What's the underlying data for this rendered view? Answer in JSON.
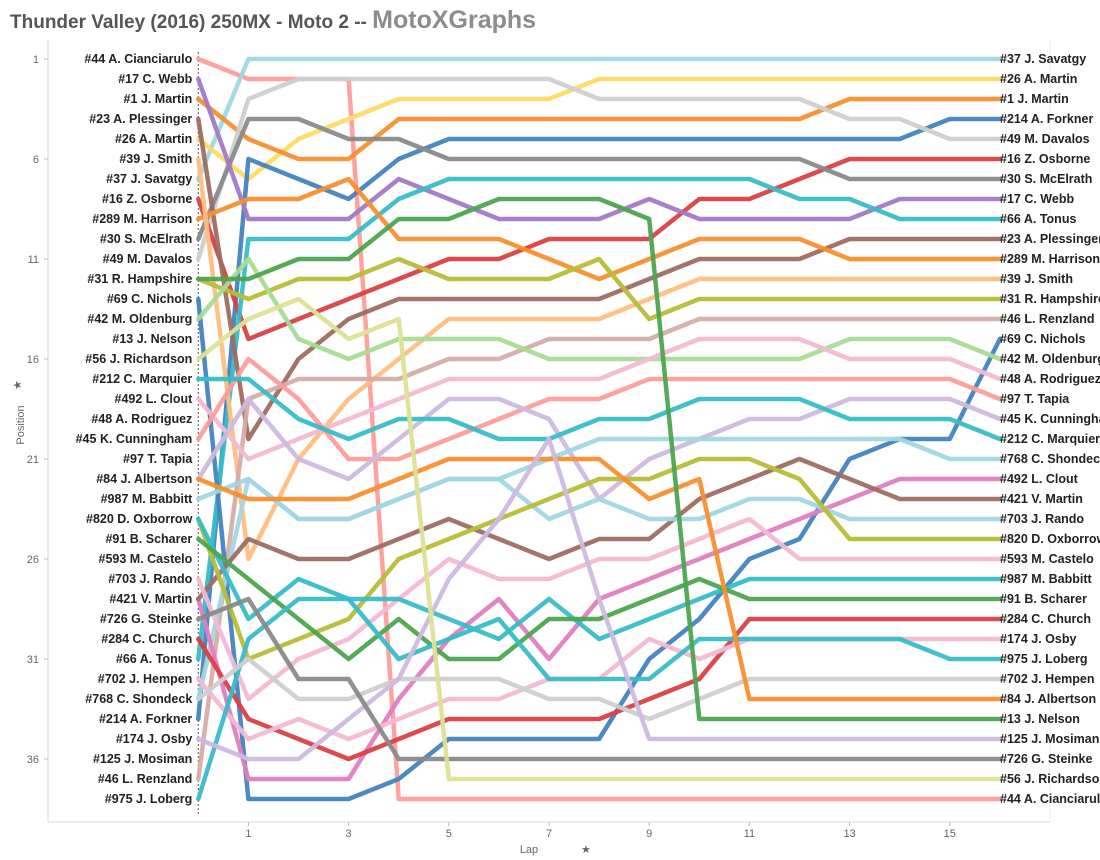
{
  "header": {
    "title": "Thunder Valley (2016) 250MX - Moto 2 --",
    "brand": "MotoXGraphs"
  },
  "colors": {
    "background": "#ffffff",
    "grid": "#ececec",
    "tick_text": "#666666",
    "label_text": "#222222"
  },
  "chart_data": {
    "type": "line",
    "xlabel": "Lap",
    "ylabel": "Position",
    "xlim": [
      -3,
      17
    ],
    "ylim": [
      1,
      38
    ],
    "y_inverted": true,
    "x_ticks": [
      1,
      3,
      5,
      7,
      9,
      11,
      13,
      15
    ],
    "y_ticks": [
      1,
      6,
      11,
      16,
      21,
      26,
      31,
      36
    ],
    "grid": false,
    "x": [
      0,
      1,
      2,
      3,
      4,
      5,
      6,
      7,
      8,
      9,
      10,
      11,
      12,
      13,
      14,
      15,
      16
    ],
    "series": [
      {
        "name": "#44 A. Cianciarulo",
        "color": "#ff9d9a",
        "values": [
          1,
          2,
          2,
          2,
          38,
          38,
          38,
          38,
          38,
          38,
          38,
          38,
          38,
          38,
          38,
          38,
          38
        ]
      },
      {
        "name": "#37 J. Savatgy",
        "color": "#a0d7e3",
        "values": [
          7,
          1,
          1,
          1,
          1,
          1,
          1,
          1,
          1,
          1,
          1,
          1,
          1,
          1,
          1,
          1,
          1
        ]
      },
      {
        "name": "#26 A. Martin",
        "color": "#ffdb62",
        "values": [
          5,
          7,
          5,
          4,
          3,
          3,
          3,
          3,
          2,
          2,
          2,
          2,
          2,
          2,
          2,
          2,
          2
        ]
      },
      {
        "name": "#1 J. Martin",
        "color": "#f88f2d",
        "values": [
          3,
          5,
          6,
          6,
          4,
          4,
          4,
          4,
          4,
          4,
          4,
          4,
          4,
          3,
          3,
          3,
          3
        ]
      },
      {
        "name": "#214 A. Forkner",
        "color": "#4383c0",
        "values": [
          34,
          6,
          7,
          8,
          6,
          5,
          5,
          5,
          5,
          5,
          5,
          5,
          5,
          5,
          5,
          4,
          4
        ]
      },
      {
        "name": "#49 M. Davalos",
        "color": "#cfcfcf",
        "values": [
          11,
          3,
          2,
          2,
          2,
          2,
          2,
          2,
          3,
          3,
          3,
          3,
          3,
          4,
          4,
          5,
          5
        ]
      },
      {
        "name": "#16 Z. Osborne",
        "color": "#da4043",
        "values": [
          8,
          15,
          14,
          13,
          12,
          11,
          11,
          10,
          10,
          10,
          8,
          8,
          7,
          6,
          6,
          6,
          6
        ]
      },
      {
        "name": "#30 S. McElrath",
        "color": "#8a8a8a",
        "values": [
          10,
          4,
          4,
          5,
          5,
          6,
          6,
          6,
          6,
          6,
          6,
          6,
          6,
          7,
          7,
          7,
          7
        ]
      },
      {
        "name": "#17 C. Webb",
        "color": "#a379c6",
        "values": [
          2,
          9,
          9,
          9,
          7,
          8,
          9,
          9,
          9,
          8,
          9,
          9,
          9,
          9,
          8,
          8,
          8
        ]
      },
      {
        "name": "#66 A. Tonus",
        "color": "#37bdc8",
        "values": [
          31,
          10,
          10,
          10,
          8,
          7,
          7,
          7,
          7,
          7,
          7,
          7,
          8,
          8,
          9,
          9,
          9
        ]
      },
      {
        "name": "#23 A. Plessinger",
        "color": "#9f6b62",
        "values": [
          4,
          20,
          16,
          14,
          13,
          13,
          13,
          13,
          13,
          12,
          11,
          11,
          11,
          10,
          10,
          10,
          10
        ]
      },
      {
        "name": "#289 M. Harrison",
        "color": "#f88f2d",
        "values": [
          9,
          8,
          8,
          7,
          10,
          10,
          10,
          11,
          12,
          11,
          10,
          10,
          10,
          11,
          11,
          11,
          11
        ]
      },
      {
        "name": "#39 J. Smith",
        "color": "#ffbe7e",
        "values": [
          6,
          26,
          21,
          18,
          16,
          14,
          14,
          14,
          14,
          13,
          12,
          12,
          12,
          12,
          12,
          12,
          12
        ]
      },
      {
        "name": "#31 R. Hampshire",
        "color": "#b8bd37",
        "values": [
          12,
          13,
          12,
          12,
          11,
          12,
          12,
          12,
          11,
          14,
          13,
          13,
          13,
          13,
          13,
          13,
          13
        ]
      },
      {
        "name": "#46 L. Renzland",
        "color": "#d5ada6",
        "values": [
          37,
          18,
          17,
          17,
          17,
          16,
          16,
          15,
          15,
          15,
          14,
          14,
          14,
          14,
          14,
          14,
          14
        ]
      },
      {
        "name": "#69 C. Nichols",
        "color": "#4383c0",
        "values": [
          13,
          38,
          38,
          38,
          37,
          35,
          35,
          35,
          35,
          31,
          29,
          26,
          25,
          21,
          20,
          20,
          15
        ]
      },
      {
        "name": "#42 M. Oldenburg",
        "color": "#a6dc92",
        "values": [
          14,
          11,
          15,
          16,
          15,
          15,
          15,
          16,
          16,
          16,
          16,
          16,
          16,
          15,
          15,
          15,
          16
        ]
      },
      {
        "name": "#48 A. Rodriguez",
        "color": "#f7b8d3",
        "values": [
          18,
          21,
          20,
          19,
          18,
          17,
          17,
          17,
          17,
          16,
          15,
          15,
          15,
          16,
          16,
          16,
          17
        ]
      },
      {
        "name": "#97 T. Tapia",
        "color": "#ff9d9a",
        "values": [
          20,
          16,
          18,
          21,
          21,
          20,
          19,
          18,
          18,
          17,
          17,
          17,
          17,
          17,
          17,
          17,
          18
        ]
      },
      {
        "name": "#45 K. Cunningham",
        "color": "#cfb8e0",
        "values": [
          22,
          18,
          21,
          22,
          20,
          18,
          18,
          19,
          23,
          21,
          20,
          19,
          19,
          18,
          18,
          18,
          19
        ]
      },
      {
        "name": "#212 C. Marquier",
        "color": "#37bdc8",
        "values": [
          17,
          17,
          19,
          20,
          19,
          19,
          20,
          20,
          19,
          19,
          18,
          18,
          18,
          19,
          19,
          19,
          20
        ]
      },
      {
        "name": "#768 C. Shondeck",
        "color": "#a0d7e3",
        "values": [
          33,
          22,
          24,
          24,
          23,
          22,
          22,
          21,
          20,
          20,
          20,
          20,
          20,
          20,
          20,
          21,
          21
        ]
      },
      {
        "name": "#492 L. Clout",
        "color": "#e17dc2",
        "values": [
          28,
          37,
          37,
          37,
          33,
          30,
          28,
          31,
          28,
          27,
          26,
          25,
          24,
          23,
          22,
          22,
          22
        ]
      },
      {
        "name": "#421 V. Martin",
        "color": "#9f6b62",
        "values": [
          28,
          25,
          26,
          26,
          25,
          24,
          25,
          26,
          25,
          25,
          23,
          22,
          21,
          22,
          23,
          23,
          23
        ]
      },
      {
        "name": "#703 J. Rando",
        "color": "#a0d7e3",
        "values": [
          23,
          22,
          24,
          24,
          23,
          22,
          22,
          24,
          23,
          24,
          24,
          23,
          23,
          24,
          24,
          24,
          24
        ]
      },
      {
        "name": "#820 D. Oxborrow",
        "color": "#b8bd37",
        "values": [
          24,
          31,
          30,
          29,
          26,
          25,
          24,
          23,
          22,
          22,
          21,
          21,
          22,
          25,
          25,
          25,
          25
        ]
      },
      {
        "name": "#593 M. Castelo",
        "color": "#f7b8d3",
        "values": [
          27,
          33,
          31,
          30,
          28,
          26,
          27,
          27,
          26,
          26,
          25,
          24,
          26,
          26,
          26,
          26,
          26
        ]
      },
      {
        "name": "#987 M. Babbitt",
        "color": "#37bdc8",
        "values": [
          24,
          29,
          27,
          28,
          28,
          29,
          30,
          28,
          30,
          29,
          28,
          27,
          27,
          27,
          27,
          27,
          27
        ]
      },
      {
        "name": "#91 B. Scharer",
        "color": "#4ca54f",
        "values": [
          25,
          27,
          29,
          31,
          29,
          31,
          31,
          29,
          29,
          28,
          27,
          28,
          28,
          28,
          28,
          28,
          28
        ]
      },
      {
        "name": "#284 C. Church",
        "color": "#da4043",
        "values": [
          30,
          34,
          35,
          36,
          35,
          34,
          34,
          34,
          34,
          33,
          32,
          29,
          29,
          29,
          29,
          29,
          29
        ]
      },
      {
        "name": "#174 J. Osby",
        "color": "#f7b8d3",
        "values": [
          32,
          35,
          34,
          35,
          34,
          33,
          33,
          32,
          32,
          30,
          31,
          30,
          30,
          30,
          30,
          30,
          30
        ]
      },
      {
        "name": "#975 J. Loberg",
        "color": "#37bdc8",
        "values": [
          38,
          30,
          28,
          28,
          31,
          30,
          29,
          32,
          32,
          32,
          30,
          30,
          30,
          30,
          30,
          31,
          31
        ]
      },
      {
        "name": "#702 J. Hempen",
        "color": "#cfcfcf",
        "values": [
          33,
          31,
          33,
          33,
          32,
          32,
          32,
          33,
          33,
          34,
          33,
          32,
          32,
          32,
          32,
          32,
          32
        ]
      },
      {
        "name": "#84 J. Albertson",
        "color": "#f88f2d",
        "values": [
          22,
          23,
          23,
          23,
          22,
          21,
          21,
          21,
          21,
          23,
          22,
          33,
          33,
          33,
          33,
          33,
          33
        ]
      },
      {
        "name": "#13 J. Nelson",
        "color": "#4ca54f",
        "values": [
          12,
          12,
          11,
          11,
          9,
          9,
          8,
          8,
          8,
          9,
          34,
          34,
          34,
          34,
          34,
          34,
          34
        ]
      },
      {
        "name": "#125 J. Mosiman",
        "color": "#cfb8e0",
        "values": [
          35,
          36,
          36,
          34,
          32,
          27,
          24,
          20,
          28,
          35,
          35,
          35,
          35,
          35,
          35,
          35,
          35
        ]
      },
      {
        "name": "#726 G. Steinke",
        "color": "#8a8a8a",
        "values": [
          29,
          28,
          32,
          32,
          36,
          36,
          36,
          36,
          36,
          36,
          36,
          36,
          36,
          36,
          36,
          36,
          36
        ]
      },
      {
        "name": "#56 J. Richardson",
        "color": "#dde193",
        "values": [
          16,
          14,
          13,
          15,
          14,
          37,
          37,
          37,
          37,
          37,
          37,
          37,
          37,
          37,
          37,
          37,
          37
        ]
      }
    ]
  }
}
